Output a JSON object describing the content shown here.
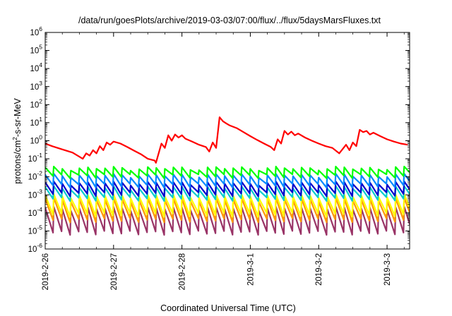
{
  "chart_data": {
    "type": "line",
    "title": "/data/run/goesPlots/archive/2019-03-03/07:00/flux/../flux/5daysMarsFluxes.txt",
    "xlabel": "Coordinated Universal Time (UTC)",
    "ylabel_parts": {
      "main": "protons/cm",
      "sup": "2",
      "rest": "-s-sr-MeV"
    },
    "y_scale": "log",
    "ylim": [
      1e-06,
      1000000.0
    ],
    "yticks": [
      {
        "base": "10",
        "exp": "-6"
      },
      {
        "base": "10",
        "exp": "-5"
      },
      {
        "base": "10",
        "exp": "-4"
      },
      {
        "base": "10",
        "exp": "-3"
      },
      {
        "base": "10",
        "exp": "-2"
      },
      {
        "base": "10",
        "exp": "-1"
      },
      {
        "base": "10",
        "exp": "0"
      },
      {
        "base": "10",
        "exp": "1"
      },
      {
        "base": "10",
        "exp": "2"
      },
      {
        "base": "10",
        "exp": "3"
      },
      {
        "base": "10",
        "exp": "4"
      },
      {
        "base": "10",
        "exp": "5"
      },
      {
        "base": "10",
        "exp": "6"
      }
    ],
    "xlim_days": [
      0,
      5.33
    ],
    "xticks": [
      {
        "label": "2019-2-26",
        "day": 0
      },
      {
        "label": "2019-2-27",
        "day": 1
      },
      {
        "label": "2019-2-28",
        "day": 2
      },
      {
        "label": "2019-3-1",
        "day": 3
      },
      {
        "label": "2019-3-2",
        "day": 4
      },
      {
        "label": "2019-3-3",
        "day": 5
      }
    ],
    "grid": false,
    "series": [
      {
        "color": "#ff0000",
        "x": [
          0,
          0.1,
          0.25,
          0.4,
          0.55,
          0.6,
          0.65,
          0.7,
          0.75,
          0.8,
          0.85,
          0.9,
          0.95,
          1.0,
          1.1,
          1.2,
          1.3,
          1.4,
          1.5,
          1.6,
          1.62,
          1.7,
          1.75,
          1.8,
          1.85,
          1.9,
          1.95,
          2.0,
          2.05,
          2.15,
          2.25,
          2.35,
          2.4,
          2.45,
          2.5,
          2.55,
          2.6,
          2.65,
          2.7,
          2.8,
          2.9,
          3.0,
          3.1,
          3.2,
          3.3,
          3.35,
          3.4,
          3.45,
          3.5,
          3.55,
          3.6,
          3.65,
          3.7,
          3.8,
          3.9,
          4.0,
          4.1,
          4.2,
          4.3,
          4.4,
          4.45,
          4.5,
          4.55,
          4.6,
          4.65,
          4.7,
          4.75,
          4.8,
          4.9,
          5.0,
          5.1,
          5.2,
          5.3
        ],
        "y": [
          0.7,
          0.5,
          0.33,
          0.22,
          0.1,
          0.2,
          0.15,
          0.3,
          0.2,
          0.5,
          0.3,
          0.8,
          0.6,
          0.9,
          0.7,
          0.45,
          0.28,
          0.18,
          0.1,
          0.08,
          0.06,
          0.7,
          0.4,
          2.0,
          1.0,
          2.2,
          1.5,
          2.0,
          1.3,
          0.9,
          0.6,
          0.45,
          0.25,
          0.8,
          0.4,
          20.0,
          12.0,
          9.0,
          7.0,
          5.0,
          3.0,
          1.8,
          1.1,
          0.7,
          0.45,
          0.3,
          1.2,
          0.7,
          3.5,
          2.2,
          3.2,
          2.0,
          2.5,
          1.5,
          1.0,
          0.7,
          0.5,
          0.4,
          0.2,
          0.6,
          0.3,
          0.8,
          0.5,
          4.0,
          3.0,
          3.5,
          2.2,
          2.8,
          1.8,
          1.2,
          0.9,
          0.7,
          0.6
        ]
      },
      {
        "color": "#00ff00",
        "sawtooth": {
          "period": 0.125,
          "peak": 0.03,
          "trough": 0.011
        }
      },
      {
        "color": "#0088ff",
        "sawtooth": {
          "period": 0.125,
          "peak": 0.012,
          "trough": 0.0033
        }
      },
      {
        "color": "#0000cc",
        "sawtooth": {
          "period": 0.125,
          "peak": 0.0045,
          "trough": 0.0011
        }
      },
      {
        "color": "#00cccc",
        "sawtooth": {
          "period": 0.125,
          "peak": 0.0025,
          "trough": 0.0006
        }
      },
      {
        "color": "#ffff00",
        "sawtooth": {
          "period": 0.125,
          "peak": 0.0009,
          "trough": 8e-05
        }
      },
      {
        "color": "#ff9900",
        "sawtooth": {
          "period": 0.125,
          "peak": 0.00055,
          "trough": 4e-05
        }
      },
      {
        "color": "#993366",
        "sawtooth": {
          "period": 0.125,
          "peak": 0.00018,
          "trough": 8e-06
        }
      }
    ]
  }
}
